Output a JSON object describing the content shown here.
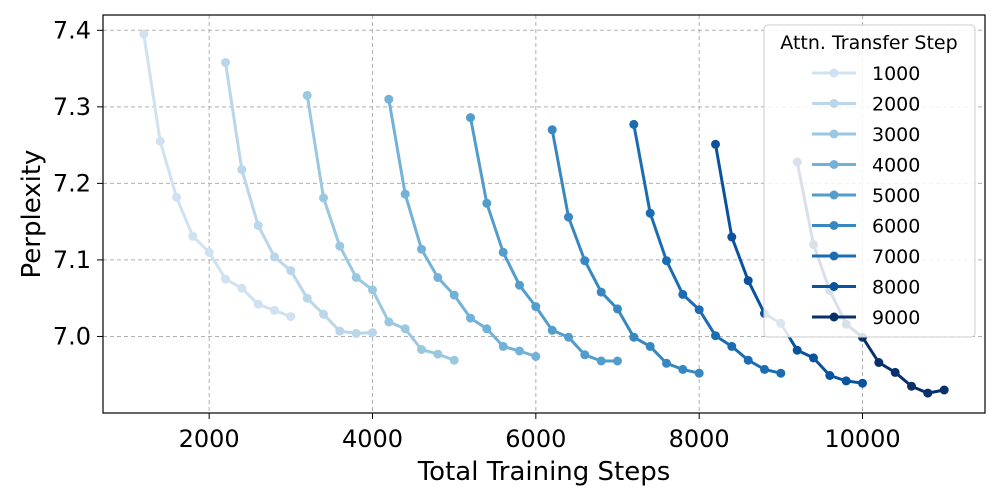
{
  "chart_data": {
    "type": "line",
    "xlabel": "Total Training Steps",
    "ylabel": "Perplexity",
    "xlim": [
      700,
      11500
    ],
    "ylim": [
      6.9,
      7.42
    ],
    "xticks": [
      2000,
      4000,
      6000,
      8000,
      10000
    ],
    "xtick_labels": [
      "2000",
      "4000",
      "6000",
      "8000",
      "10000"
    ],
    "yticks": [
      7.0,
      7.1,
      7.2,
      7.3,
      7.4
    ],
    "ytick_labels": [
      "7.0",
      "7.1",
      "7.2",
      "7.3",
      "7.4"
    ],
    "grid": true,
    "legend": {
      "title": "Attn. Transfer Step",
      "placement": "top-right"
    },
    "series": [
      {
        "name": "1000",
        "color": "#d0e1f2",
        "x": [
          1200,
          1400,
          1600,
          1800,
          2000,
          2200,
          2400,
          2600,
          2800,
          3000
        ],
        "y": [
          7.395,
          7.255,
          7.182,
          7.131,
          7.11,
          7.075,
          7.063,
          7.042,
          7.034,
          7.026
        ]
      },
      {
        "name": "2000",
        "color": "#b9d6ea",
        "x": [
          2200,
          2400,
          2600,
          2800,
          3000,
          3200,
          3400,
          3600,
          3800,
          4000
        ],
        "y": [
          7.358,
          7.218,
          7.145,
          7.104,
          7.086,
          7.05,
          7.029,
          7.007,
          7.004,
          7.005
        ]
      },
      {
        "name": "3000",
        "color": "#9ac8e0",
        "x": [
          3200,
          3400,
          3600,
          3800,
          4000,
          4200,
          4400,
          4600,
          4800,
          5000
        ],
        "y": [
          7.315,
          7.181,
          7.118,
          7.077,
          7.061,
          7.019,
          7.01,
          6.983,
          6.977,
          6.969
        ]
      },
      {
        "name": "4000",
        "color": "#73b2d8",
        "x": [
          4200,
          4400,
          4600,
          4800,
          5000,
          5200,
          5400,
          5600,
          5800,
          6000
        ],
        "y": [
          7.31,
          7.186,
          7.114,
          7.077,
          7.054,
          7.024,
          7.01,
          6.987,
          6.981,
          6.974
        ]
      },
      {
        "name": "5000",
        "color": "#529dcc",
        "x": [
          5200,
          5400,
          5600,
          5800,
          6000,
          6200,
          6400,
          6600,
          6800,
          7000
        ],
        "y": [
          7.286,
          7.174,
          7.11,
          7.067,
          7.039,
          7.008,
          6.999,
          6.976,
          6.968,
          6.968
        ]
      },
      {
        "name": "6000",
        "color": "#3787c0",
        "x": [
          6200,
          6400,
          6600,
          6800,
          7000,
          7200,
          7400,
          7600,
          7800,
          8000
        ],
        "y": [
          7.27,
          7.156,
          7.099,
          7.058,
          7.036,
          6.999,
          6.987,
          6.965,
          6.957,
          6.952
        ]
      },
      {
        "name": "7000",
        "color": "#1c6cb1",
        "x": [
          7200,
          7400,
          7600,
          7800,
          8000,
          8200,
          8400,
          8600,
          8800,
          9000
        ],
        "y": [
          7.277,
          7.161,
          7.099,
          7.055,
          7.035,
          7.001,
          6.987,
          6.969,
          6.957,
          6.952
        ]
      },
      {
        "name": "8000",
        "color": "#09529d",
        "x": [
          8200,
          8400,
          8600,
          8800,
          9000,
          9200,
          9400,
          9600,
          9800,
          10000
        ],
        "y": [
          7.251,
          7.13,
          7.073,
          7.03,
          7.017,
          6.982,
          6.972,
          6.949,
          6.942,
          6.939
        ]
      },
      {
        "name": "9000",
        "color": "#08306b",
        "x": [
          9200,
          9400,
          9600,
          9800,
          10000,
          10200,
          10400,
          10600,
          10800,
          11000
        ],
        "y": [
          7.228,
          7.12,
          7.06,
          7.016,
          6.999,
          6.966,
          6.953,
          6.935,
          6.926,
          6.93
        ]
      }
    ]
  }
}
